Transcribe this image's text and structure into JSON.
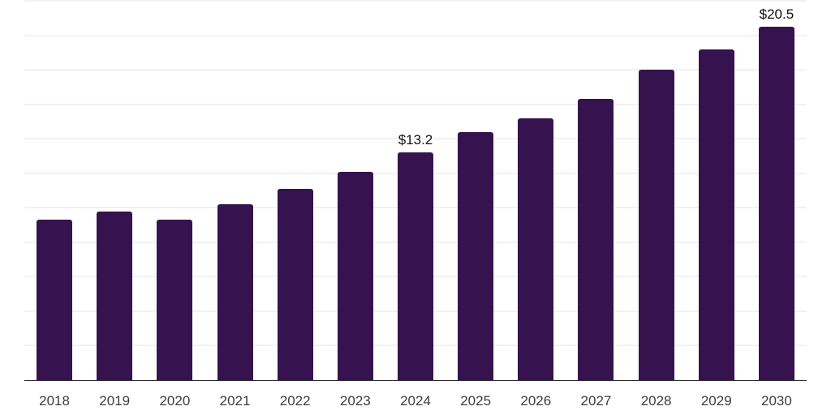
{
  "chart_data": {
    "type": "bar",
    "title": "",
    "xlabel": "",
    "ylabel": "",
    "categories": [
      "2018",
      "2019",
      "2020",
      "2021",
      "2022",
      "2023",
      "2024",
      "2025",
      "2026",
      "2027",
      "2028",
      "2029",
      "2030"
    ],
    "values": [
      9.3,
      9.8,
      9.3,
      10.2,
      11.1,
      12.1,
      13.2,
      14.4,
      15.2,
      16.3,
      18.0,
      19.2,
      20.5
    ],
    "annotations": [
      {
        "category": "2024",
        "text": "$13.2"
      },
      {
        "category": "2030",
        "text": "$20.5"
      }
    ],
    "ylim": [
      0,
      22
    ],
    "gridline_step": 2,
    "grid": true,
    "legend": false,
    "y_axis_labels_visible": false,
    "colors": {
      "bar": "#36124E",
      "gridline": "#f2f2f4",
      "axis": "#2b2b2b",
      "tick_label": "#3c3c3c",
      "value_label": "#111111",
      "background": "#ffffff"
    }
  }
}
